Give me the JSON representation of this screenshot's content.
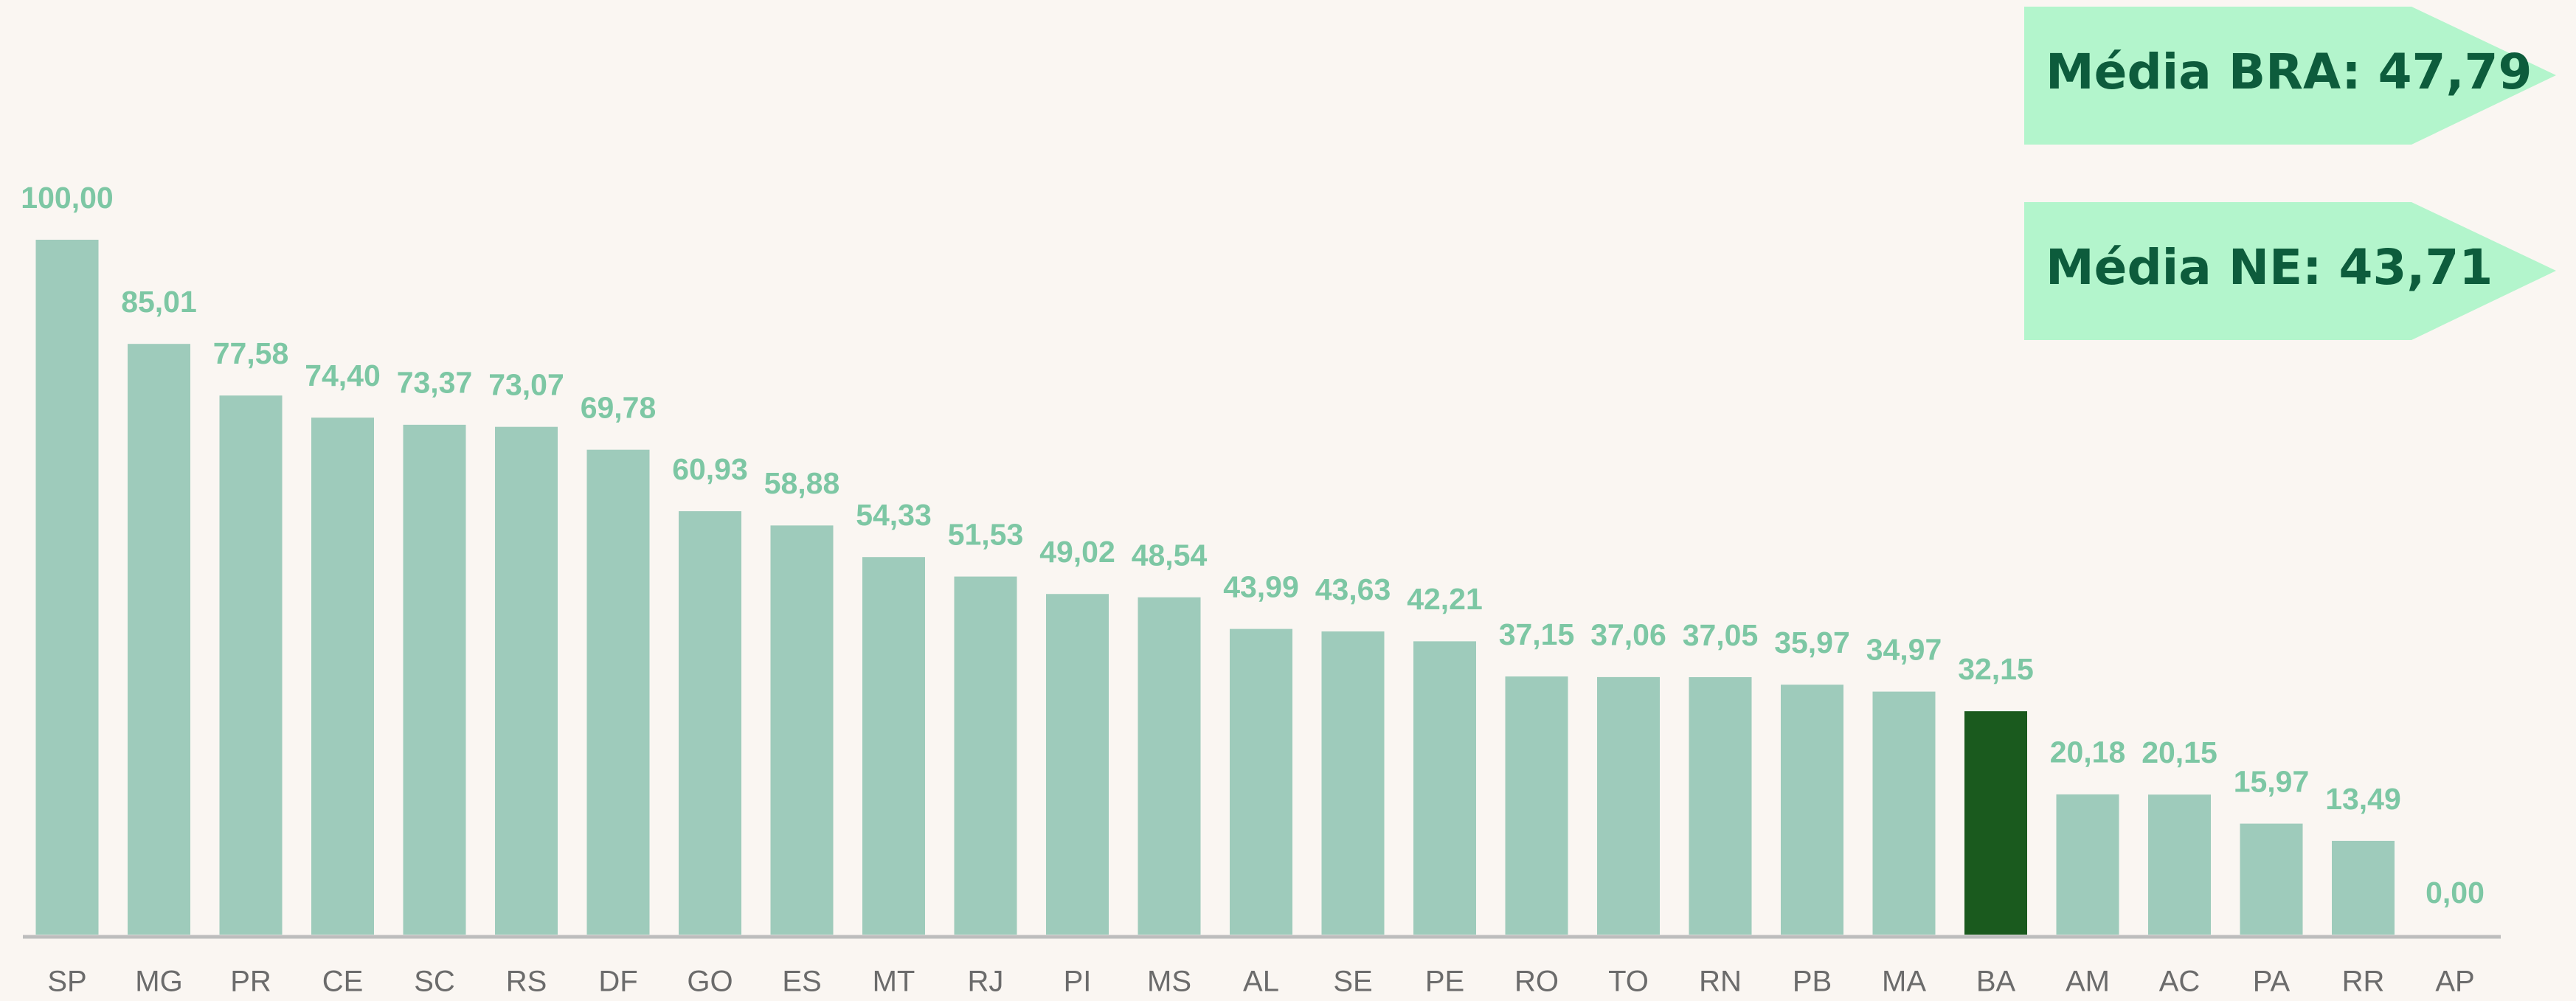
{
  "chart_data": {
    "type": "bar",
    "categories": [
      "SP",
      "MG",
      "PR",
      "CE",
      "SC",
      "RS",
      "DF",
      "GO",
      "ES",
      "MT",
      "RJ",
      "PI",
      "MS",
      "AL",
      "SE",
      "PE",
      "RO",
      "TO",
      "RN",
      "PB",
      "MA",
      "BA",
      "AM",
      "AC",
      "PA",
      "RR",
      "AP"
    ],
    "values": [
      100.0,
      85.01,
      77.58,
      74.4,
      73.37,
      73.07,
      69.78,
      60.93,
      58.88,
      54.33,
      51.53,
      49.02,
      48.54,
      43.99,
      43.63,
      42.21,
      37.15,
      37.06,
      37.05,
      35.97,
      34.97,
      32.15,
      20.18,
      20.15,
      15.97,
      13.49,
      0.0
    ],
    "value_labels": [
      "100,00",
      "85,01",
      "77,58",
      "74,40",
      "73,37",
      "73,07",
      "69,78",
      "60,93",
      "58,88",
      "54,33",
      "51,53",
      "49,02",
      "48,54",
      "43,99",
      "43,63",
      "42,21",
      "37,15",
      "37,06",
      "37,05",
      "35,97",
      "34,97",
      "32,15",
      "20,18",
      "20,15",
      "15,97",
      "13,49",
      "0,00"
    ],
    "color": "#9ecbbb",
    "highlight": {
      "category": "BA",
      "color": "#1a5a1e"
    },
    "ylim": [
      0,
      100
    ],
    "annotations": [
      "Média BRA: 47,79",
      "Média NE: 43,71"
    ]
  }
}
